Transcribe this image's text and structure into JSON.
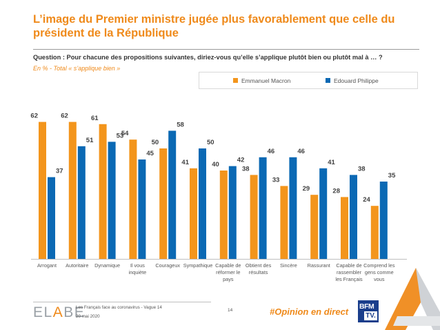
{
  "title": "L’image du Premier ministre jugée plus favorablement que celle du président de la République",
  "question": "Question : Pour chacune des propositions suivantes, diriez-vous qu’elle s’applique plutôt bien ou plutôt mal à … ?",
  "subtitle": "En  % - Total « s’applique bien »",
  "colors": {
    "accent": "#ef8a1b",
    "macron": "#f3951c",
    "philippe": "#0b69b4"
  },
  "chart_data": {
    "type": "bar",
    "categories": [
      [
        "Arrogant"
      ],
      [
        "Autoritaire"
      ],
      [
        "Dynamique"
      ],
      [
        "Il vous",
        "inquiète"
      ],
      [
        "Courageux"
      ],
      [
        "Sympathique"
      ],
      [
        "Capable de",
        "réformer le",
        "pays"
      ],
      [
        "Obtient des",
        "résultats"
      ],
      [
        "Sincère"
      ],
      [
        "Rassurant"
      ],
      [
        "Capable de",
        "rassembler",
        "les Français"
      ],
      [
        "Comprend les",
        "gens comme",
        "vous"
      ]
    ],
    "series": [
      {
        "name": "Emmanuel Macron",
        "color": "#f3951c",
        "values": [
          62,
          62,
          61,
          54,
          50,
          41,
          40,
          38,
          33,
          29,
          28,
          24
        ]
      },
      {
        "name": "Edouard Philippe",
        "color": "#0b69b4",
        "values": [
          37,
          51,
          53,
          45,
          58,
          50,
          42,
          46,
          46,
          41,
          38,
          35
        ]
      }
    ],
    "ylim": [
      0,
      65
    ],
    "grid": false,
    "legend": "top-right"
  },
  "footer": {
    "logo_a": "EL",
    "logo_b": "A",
    "logo_c": "BE",
    "survey": "Les Français face au coronavirus - Vague 14",
    "date": "20 mai 2020",
    "page": "14",
    "hashtag": "#Opinion en direct",
    "bfm_top": "BFM",
    "bfm_tv": "TV."
  }
}
